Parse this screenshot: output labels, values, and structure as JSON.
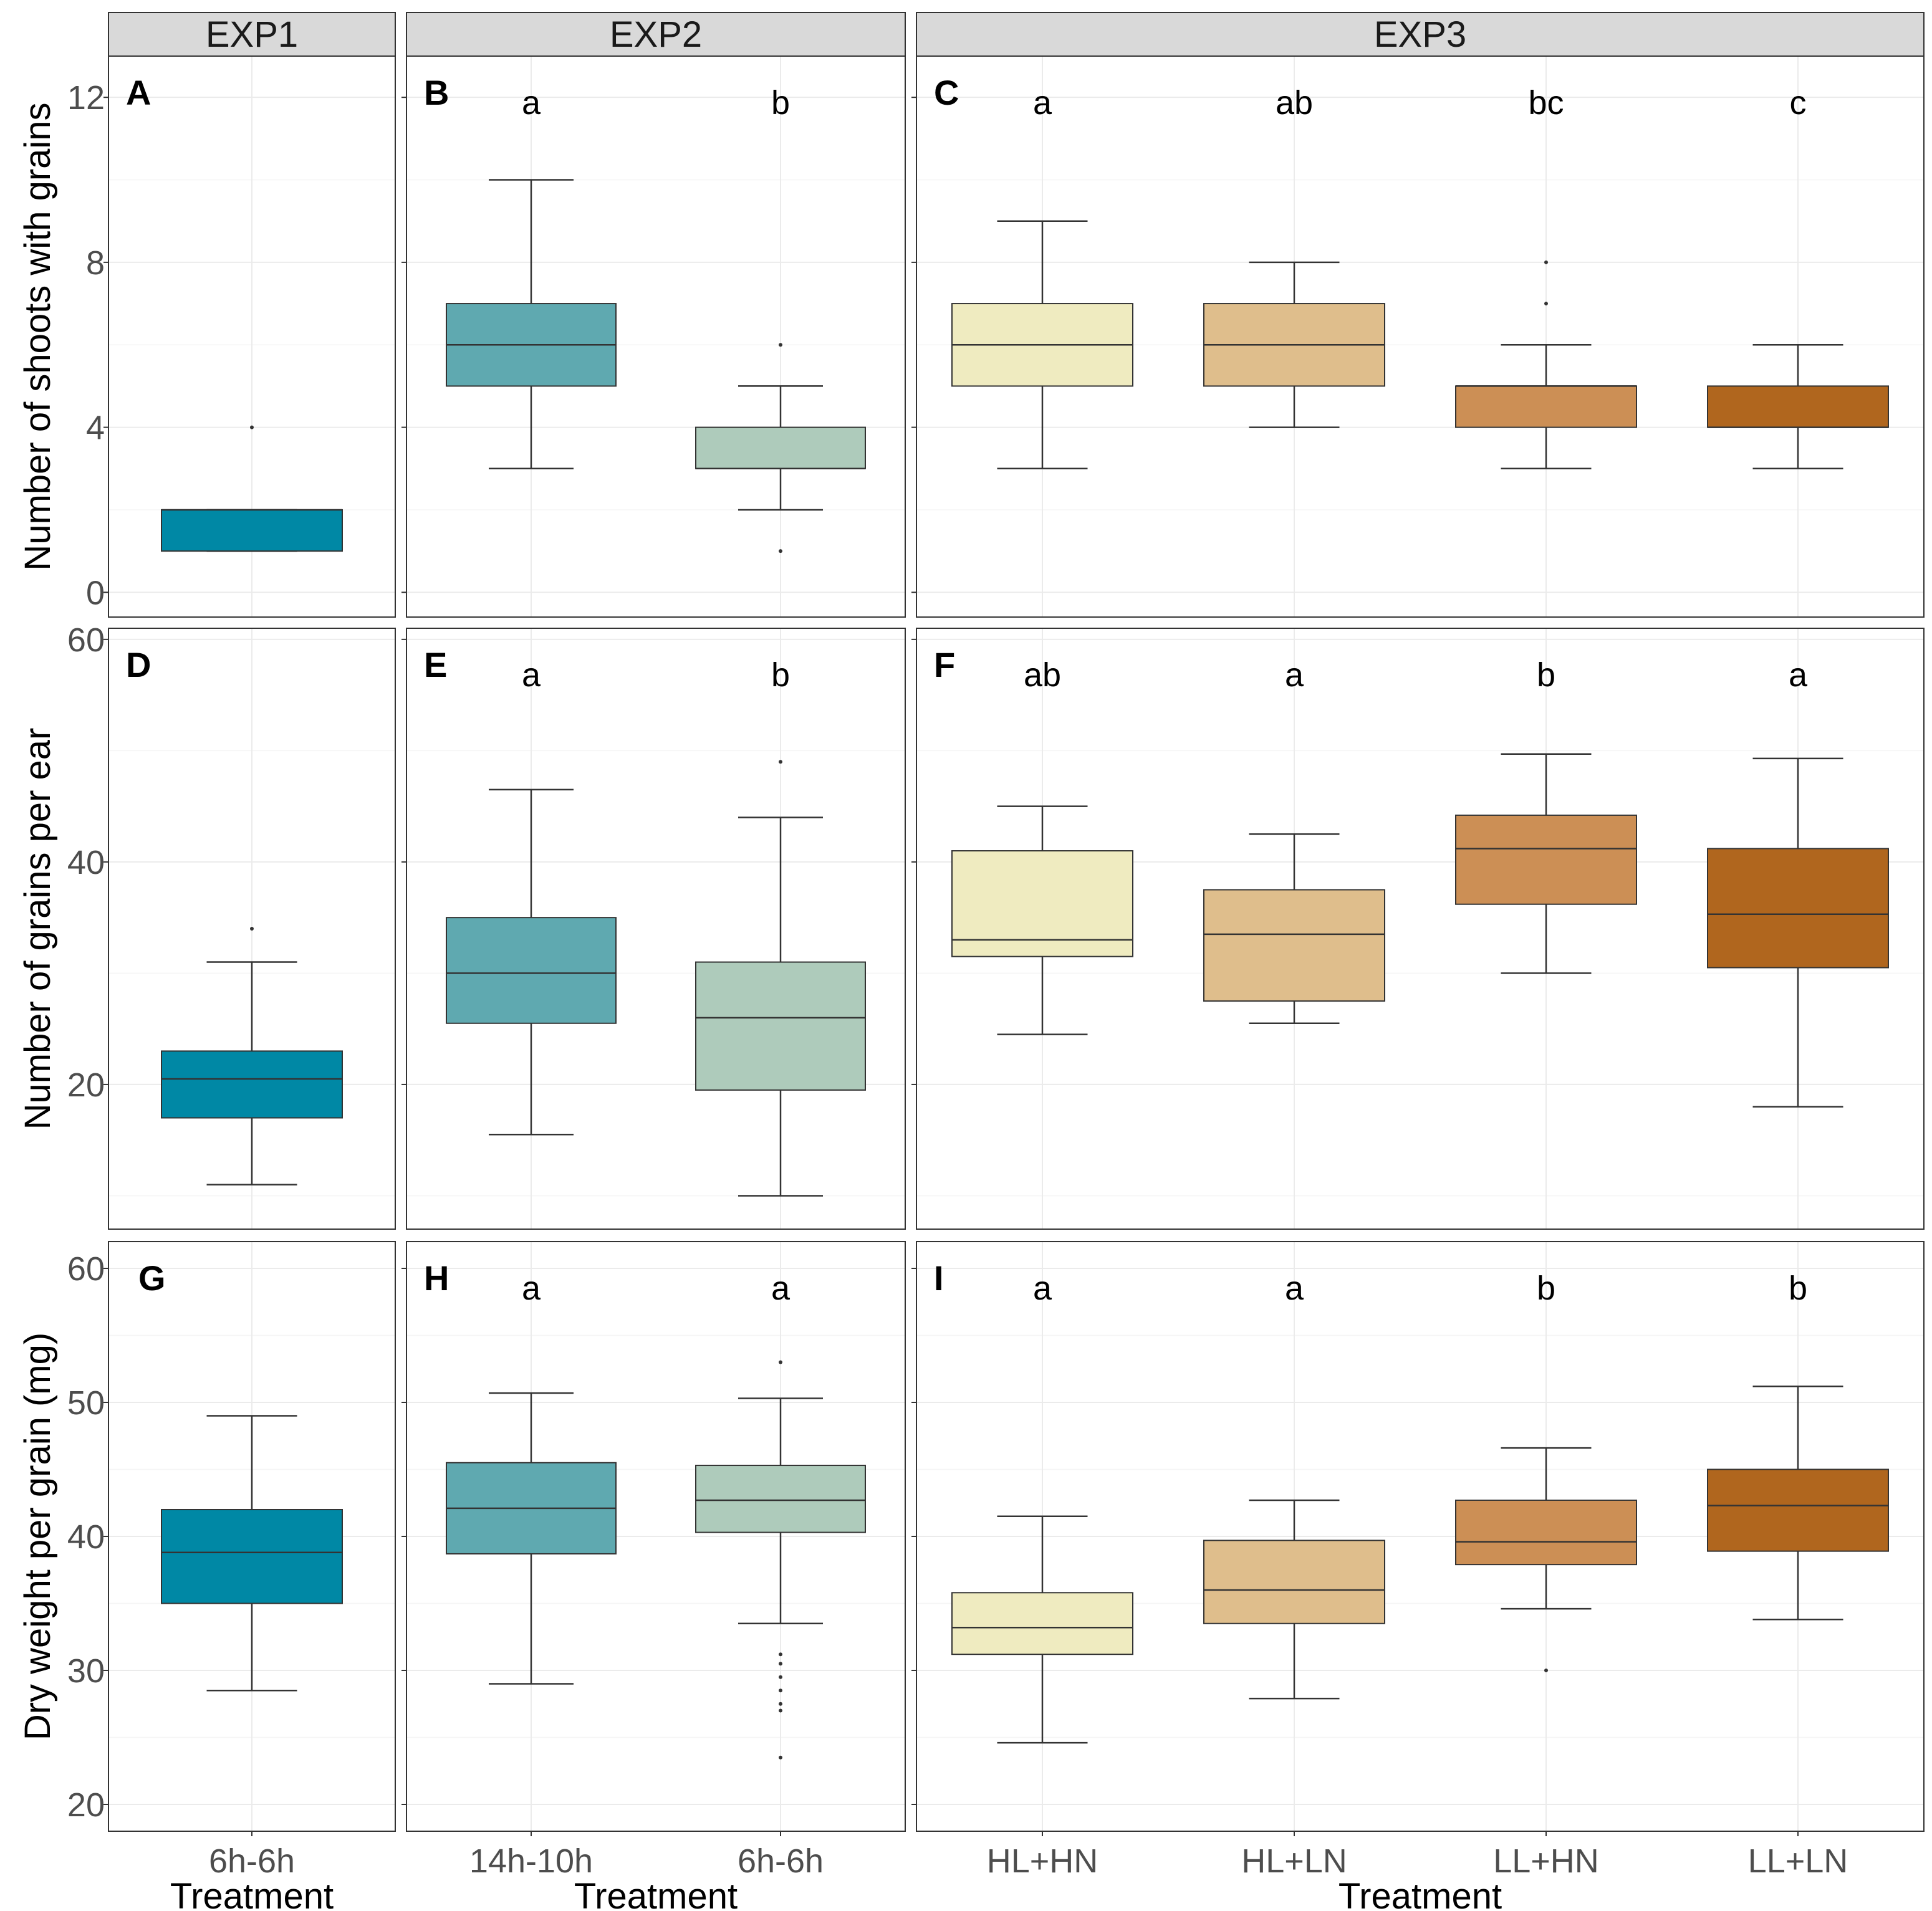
{
  "strips": [
    "EXP1",
    "EXP2",
    "EXP3"
  ],
  "axis": {
    "x_title": "Treatment",
    "y_titles": [
      "Number of shoots with grains",
      "Number of grains per ear",
      "Dry weight per grain (mg)"
    ]
  },
  "colors": {
    "6h-6h_exp1": "#0088a5",
    "14h-10h": "#5fa9b0",
    "6h-6h_exp2": "#aecbbb",
    "HL+HN": "#efebc0",
    "HL+LN": "#dfbe8c",
    "LL+HN": "#cc8f55",
    "LL+LN": "#b0661e",
    "strip_bg": "#d9d9d9"
  },
  "chart_data": [
    {
      "type": "box",
      "row": 0,
      "ylabel": "Number of shoots with grains",
      "ylim": [
        -0.6,
        13
      ],
      "yticks": [
        0,
        4,
        8,
        12
      ],
      "panels": [
        {
          "letter": "A",
          "strip": "EXP1",
          "categories": [
            "6h-6h"
          ],
          "color_keys": [
            "6h-6h_exp1"
          ],
          "sig": [
            ""
          ],
          "boxes": [
            {
              "low": 1,
              "q1": 1,
              "median": 2,
              "q3": 2,
              "high": 2,
              "outliers": [
                4
              ]
            }
          ]
        },
        {
          "letter": "B",
          "strip": "EXP2",
          "categories": [
            "14h-10h",
            "6h-6h"
          ],
          "color_keys": [
            "14h-10h",
            "6h-6h_exp2"
          ],
          "sig": [
            "a",
            "b"
          ],
          "boxes": [
            {
              "low": 3,
              "q1": 5,
              "median": 6,
              "q3": 7,
              "high": 10,
              "outliers": []
            },
            {
              "low": 2,
              "q1": 3,
              "median": 3,
              "q3": 4,
              "high": 5,
              "outliers": [
                6,
                1
              ]
            }
          ]
        },
        {
          "letter": "C",
          "strip": "EXP3",
          "categories": [
            "HL+HN",
            "HL+LN",
            "LL+HN",
            "LL+LN"
          ],
          "color_keys": [
            "HL+HN",
            "HL+LN",
            "LL+HN",
            "LL+LN"
          ],
          "sig": [
            "a",
            "ab",
            "bc",
            "c"
          ],
          "boxes": [
            {
              "low": 3,
              "q1": 5,
              "median": 6,
              "q3": 7,
              "high": 9,
              "outliers": []
            },
            {
              "low": 4,
              "q1": 5,
              "median": 6,
              "q3": 7,
              "high": 8,
              "outliers": []
            },
            {
              "low": 3,
              "q1": 4,
              "median": 5,
              "q3": 5,
              "high": 6,
              "outliers": [
                8,
                7
              ]
            },
            {
              "low": 3,
              "q1": 4,
              "median": 4,
              "q3": 5,
              "high": 6,
              "outliers": []
            }
          ]
        }
      ]
    },
    {
      "type": "box",
      "row": 1,
      "ylabel": "Number of grains per ear",
      "ylim": [
        7,
        61
      ],
      "yticks": [
        20,
        40,
        60
      ],
      "panels": [
        {
          "letter": "D",
          "strip": "EXP1",
          "categories": [
            "6h-6h"
          ],
          "color_keys": [
            "6h-6h_exp1"
          ],
          "sig": [
            ""
          ],
          "boxes": [
            {
              "low": 11,
              "q1": 17,
              "median": 20.5,
              "q3": 23,
              "high": 31,
              "outliers": [
                34
              ]
            }
          ]
        },
        {
          "letter": "E",
          "strip": "EXP2",
          "categories": [
            "14h-10h",
            "6h-6h"
          ],
          "color_keys": [
            "14h-10h",
            "6h-6h_exp2"
          ],
          "sig": [
            "a",
            "b"
          ],
          "boxes": [
            {
              "low": 15.5,
              "q1": 25.5,
              "median": 30,
              "q3": 35,
              "high": 46.5,
              "outliers": []
            },
            {
              "low": 10,
              "q1": 19.5,
              "median": 26,
              "q3": 31,
              "high": 44,
              "outliers": [
                49
              ]
            }
          ]
        },
        {
          "letter": "F",
          "strip": "EXP3",
          "categories": [
            "HL+HN",
            "HL+LN",
            "LL+HN",
            "LL+LN"
          ],
          "color_keys": [
            "HL+HN",
            "HL+LN",
            "LL+HN",
            "LL+LN"
          ],
          "sig": [
            "ab",
            "a",
            "b",
            "a"
          ],
          "boxes": [
            {
              "low": 24.5,
              "q1": 31.5,
              "median": 33,
              "q3": 41,
              "high": 45,
              "outliers": []
            },
            {
              "low": 25.5,
              "q1": 27.5,
              "median": 33.5,
              "q3": 37.5,
              "high": 42.5,
              "outliers": []
            },
            {
              "low": 30,
              "q1": 36.2,
              "median": 41.2,
              "q3": 44.2,
              "high": 49.7,
              "outliers": []
            },
            {
              "low": 18,
              "q1": 30.5,
              "median": 35.3,
              "q3": 41.2,
              "high": 49.3,
              "outliers": []
            }
          ]
        }
      ]
    },
    {
      "type": "box",
      "row": 2,
      "ylabel": "Dry weight per grain (mg)",
      "ylim": [
        18,
        62
      ],
      "yticks": [
        20,
        30,
        40,
        50,
        60
      ],
      "panels": [
        {
          "letter": "G",
          "strip": "EXP1",
          "categories": [
            "6h-6h"
          ],
          "color_keys": [
            "6h-6h_exp1"
          ],
          "sig": [
            ""
          ],
          "boxes": [
            {
              "low": 28.5,
              "q1": 35,
              "median": 38.8,
              "q3": 42,
              "high": 49,
              "outliers": []
            }
          ]
        },
        {
          "letter": "H",
          "strip": "EXP2",
          "categories": [
            "14h-10h",
            "6h-6h"
          ],
          "color_keys": [
            "14h-10h",
            "6h-6h_exp2"
          ],
          "sig": [
            "a",
            "a"
          ],
          "boxes": [
            {
              "low": 29,
              "q1": 38.7,
              "median": 42.1,
              "q3": 45.5,
              "high": 50.7,
              "outliers": []
            },
            {
              "low": 33.5,
              "q1": 40.3,
              "median": 42.7,
              "q3": 45.3,
              "high": 50.3,
              "outliers": [
                53,
                31.2,
                30.5,
                29.5,
                28.5,
                27.5,
                27,
                23.5
              ]
            }
          ]
        },
        {
          "letter": "I",
          "strip": "EXP3",
          "categories": [
            "HL+HN",
            "HL+LN",
            "LL+HN",
            "LL+LN"
          ],
          "color_keys": [
            "HL+HN",
            "HL+LN",
            "LL+HN",
            "LL+LN"
          ],
          "sig": [
            "a",
            "a",
            "b",
            "b"
          ],
          "boxes": [
            {
              "low": 24.6,
              "q1": 31.2,
              "median": 33.2,
              "q3": 35.8,
              "high": 41.5,
              "outliers": []
            },
            {
              "low": 27.9,
              "q1": 33.5,
              "median": 36,
              "q3": 39.7,
              "high": 42.7,
              "outliers": []
            },
            {
              "low": 34.6,
              "q1": 37.9,
              "median": 39.6,
              "q3": 42.7,
              "high": 46.6,
              "outliers": [
                30
              ]
            },
            {
              "low": 33.8,
              "q1": 38.9,
              "median": 42.3,
              "q3": 45,
              "high": 51.2,
              "outliers": []
            }
          ]
        }
      ]
    }
  ]
}
